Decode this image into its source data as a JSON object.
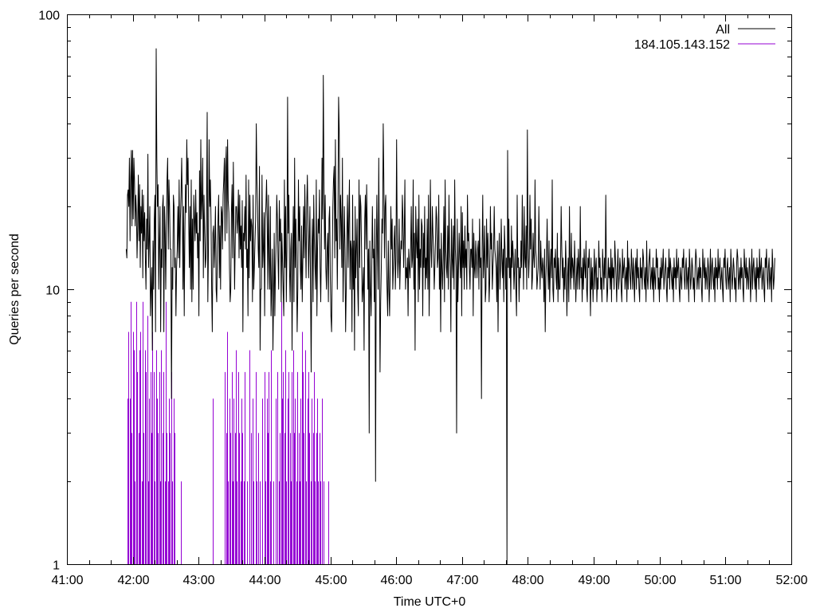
{
  "chart_data": {
    "type": "line",
    "title": "",
    "xlabel": "Time UTC+0",
    "ylabel": "Queries per second",
    "y_scale": "log",
    "xlim": [
      "41:00",
      "52:00"
    ],
    "ylim": [
      1,
      100
    ],
    "grid": false,
    "legend_position": "top-right",
    "x_ticks": [
      "41:00",
      "42:00",
      "43:00",
      "44:00",
      "45:00",
      "46:00",
      "47:00",
      "48:00",
      "49:00",
      "50:00",
      "51:00",
      "52:00"
    ],
    "y_ticks": [
      "1",
      "10",
      "100"
    ],
    "series": [
      {
        "name": "All",
        "style": "line",
        "color": "#000000",
        "x_start": "41:54",
        "x_step_seconds": 1,
        "values": [
          14,
          13,
          22,
          23,
          20,
          30,
          15,
          25,
          32,
          17,
          32,
          18,
          30,
          25,
          17,
          22,
          19,
          13,
          17,
          26,
          15,
          24,
          12,
          20,
          16,
          23,
          11,
          22,
          15,
          19,
          13,
          10,
          18,
          14,
          31,
          12,
          15,
          20,
          8,
          10,
          12,
          6,
          15,
          10,
          18,
          22,
          7,
          75,
          30,
          20,
          24,
          10,
          15,
          20,
          7,
          14,
          12,
          20,
          22,
          7,
          20,
          16,
          10,
          17,
          25,
          30,
          14,
          25,
          20,
          14,
          14,
          4,
          12,
          10,
          22,
          20,
          12,
          13,
          8,
          12,
          14,
          20,
          13,
          25,
          12,
          18,
          22,
          30,
          20,
          10,
          20,
          8,
          16,
          24,
          19,
          35,
          24,
          30,
          18,
          12,
          20,
          10,
          25,
          9,
          18,
          10,
          22,
          18,
          15,
          23,
          16,
          19,
          13,
          16,
          8,
          27,
          15,
          35,
          18,
          21,
          30,
          11,
          22,
          16,
          12,
          13,
          20,
          44,
          9,
          14,
          35,
          20,
          25,
          18,
          10,
          7,
          16,
          17,
          12,
          15,
          20,
          10,
          9,
          14,
          18,
          22,
          11,
          17,
          10,
          20,
          19,
          14,
          22,
          25,
          30,
          15,
          28,
          33,
          16,
          35,
          21,
          19,
          12,
          9,
          10,
          19,
          24,
          13,
          29,
          17,
          10,
          15,
          20,
          20,
          16,
          18,
          23,
          13,
          22,
          14,
          17,
          12,
          21,
          7,
          16,
          15,
          20,
          14,
          26,
          12,
          14,
          8,
          25,
          11,
          22,
          15,
          18,
          17,
          9,
          22,
          10,
          12,
          15,
          18,
          40,
          25,
          20,
          14,
          12,
          28,
          6,
          10,
          10,
          26,
          12,
          14,
          19,
          8,
          18,
          20,
          25,
          18,
          10,
          22,
          13,
          10,
          20,
          8,
          10,
          14,
          6,
          9,
          16,
          8,
          12,
          15,
          22,
          18,
          13,
          10,
          21,
          15,
          18,
          9,
          16,
          13,
          10,
          8,
          25,
          12,
          20,
          9,
          14,
          50,
          16,
          22,
          12,
          9,
          14,
          16,
          6,
          13,
          20,
          9,
          30,
          12,
          18,
          12,
          7,
          10,
          25,
          15,
          20,
          12,
          10,
          17,
          9,
          13,
          20,
          13,
          24,
          16,
          11,
          20,
          26,
          18,
          11,
          15,
          20,
          10,
          5,
          14,
          18,
          9,
          22,
          15,
          12,
          10,
          25,
          8,
          14,
          18,
          16,
          23,
          12,
          9,
          14,
          30,
          18,
          60,
          25,
          14,
          22,
          12,
          10,
          14,
          16,
          9,
          18,
          20,
          11,
          8,
          7,
          12,
          20,
          25,
          28,
          13,
          35,
          15,
          18,
          10,
          19,
          50,
          38,
          14,
          22,
          18,
          12,
          30,
          9,
          13,
          20,
          14,
          7,
          10,
          16,
          22,
          12,
          18,
          25,
          10,
          15,
          14,
          7,
          22,
          10,
          15,
          6,
          20,
          11,
          14,
          18,
          10,
          8,
          25,
          12,
          22,
          20,
          14,
          9,
          10,
          12,
          6,
          18,
          22,
          14,
          24,
          16,
          10,
          14,
          3,
          15,
          10,
          8,
          12,
          20,
          13,
          14,
          9,
          18,
          2,
          12,
          22,
          14,
          10,
          30,
          13,
          5,
          9,
          12,
          18,
          16,
          40,
          25,
          13,
          20,
          22,
          13,
          10,
          8,
          15,
          10,
          8,
          12,
          20,
          14,
          18,
          10,
          12,
          15,
          17,
          10,
          13,
          35,
          15,
          11,
          13,
          18,
          10,
          13,
          15,
          14,
          22,
          18,
          12,
          16,
          25,
          10,
          12,
          11,
          13,
          8,
          14,
          12,
          11,
          14,
          20,
          12,
          13,
          25,
          10,
          16,
          6,
          20,
          15,
          13,
          18,
          9,
          22,
          10,
          14,
          12,
          18,
          17,
          8,
          16,
          12,
          20,
          10,
          13,
          11,
          18,
          10,
          22,
          8,
          12,
          25,
          14,
          12,
          20,
          16,
          14,
          10,
          12,
          15,
          20,
          18,
          12,
          13,
          22,
          10,
          14,
          7,
          16,
          12,
          10,
          13,
          20,
          9,
          25,
          14,
          12,
          11,
          17,
          10,
          22,
          14,
          12,
          7,
          18,
          13,
          11,
          17,
          10,
          25,
          14,
          12,
          3,
          18,
          9,
          12,
          16,
          13,
          11,
          20,
          8,
          19,
          12,
          15,
          10,
          17,
          12,
          14,
          10,
          22,
          15,
          16,
          12,
          10,
          14,
          14,
          12,
          18,
          8,
          16,
          12,
          11,
          15,
          13,
          11,
          14,
          15,
          10,
          18,
          12,
          13,
          4,
          14,
          22,
          11,
          13,
          17,
          9,
          10,
          18,
          12,
          16,
          13,
          9,
          11,
          20,
          14,
          16,
          10,
          12,
          14,
          20,
          14,
          13,
          12,
          9,
          15,
          7,
          13,
          16,
          10,
          12,
          18,
          13,
          11,
          14,
          9,
          17,
          14,
          10,
          13,
          1,
          32,
          12,
          18,
          11,
          13,
          9,
          17,
          12,
          15,
          13,
          10,
          12,
          14,
          10,
          8,
          22,
          12,
          13,
          9,
          12,
          11,
          15,
          12,
          22,
          14,
          10,
          20,
          13,
          12,
          17,
          10,
          38,
          15,
          11,
          13,
          22,
          14,
          18,
          10,
          11,
          16,
          13,
          12,
          25,
          14,
          13,
          10,
          11,
          12,
          20,
          14,
          10,
          15,
          12,
          11,
          13,
          12,
          9,
          14,
          7,
          11,
          13,
          18,
          12,
          10,
          15,
          9,
          12,
          14,
          11,
          25,
          10,
          9,
          13,
          12,
          14,
          11,
          10,
          16,
          9,
          13,
          10,
          10,
          12,
          20,
          14,
          11,
          13,
          9,
          12,
          10,
          15,
          12,
          8,
          11,
          13,
          9,
          20,
          12,
          10,
          16,
          11,
          13,
          12,
          10,
          15,
          12,
          9,
          11,
          13,
          10,
          14,
          12,
          10,
          20,
          11,
          12,
          9,
          13,
          10,
          14,
          12,
          11,
          15,
          10,
          9,
          13,
          12,
          14,
          11,
          8,
          13,
          10,
          12,
          9,
          11,
          14,
          10,
          12,
          13,
          9,
          11,
          10,
          15,
          12,
          13,
          10,
          11,
          9,
          14,
          12,
          10,
          13,
          11,
          22,
          12,
          9,
          10,
          13,
          11,
          12,
          10,
          14,
          9,
          13,
          11,
          12,
          10,
          15,
          13,
          11,
          9,
          12,
          14,
          10,
          11,
          13,
          12,
          10,
          9,
          14,
          11,
          12,
          13,
          10,
          11,
          12,
          9,
          15,
          10,
          13,
          12,
          11,
          10,
          14,
          12,
          10,
          13,
          11,
          9,
          12,
          13,
          10,
          14,
          11,
          12,
          10,
          9,
          13,
          11,
          12,
          10,
          14,
          13,
          11,
          10,
          12,
          9,
          15,
          11,
          10,
          12,
          13,
          14,
          10,
          11,
          12,
          10,
          13,
          9,
          12,
          11,
          10,
          14,
          12,
          13,
          10,
          11,
          9,
          12,
          10,
          13,
          11,
          12,
          14,
          10,
          11,
          12,
          13,
          10,
          9,
          12,
          11,
          14,
          10,
          13,
          12,
          11,
          10,
          12,
          9,
          13,
          11,
          12,
          10,
          14,
          11,
          12,
          13,
          10,
          9,
          12,
          11,
          10,
          13,
          12,
          14,
          11,
          10,
          12,
          13,
          10,
          11,
          12,
          9,
          14,
          12,
          10,
          11,
          13,
          12,
          10,
          11,
          9,
          12,
          14,
          13,
          10,
          11,
          12,
          10,
          13,
          11,
          12,
          10,
          9,
          14,
          12,
          11,
          13,
          10,
          12,
          11,
          10,
          13,
          12,
          9,
          11,
          14,
          10,
          12,
          13,
          11,
          10,
          12,
          9,
          13,
          11,
          12,
          10,
          14,
          11,
          12,
          13,
          10,
          11,
          12,
          10,
          9,
          13,
          12,
          14,
          11,
          10,
          12,
          13,
          10,
          11,
          12,
          9,
          14,
          12,
          10,
          11,
          13,
          12,
          10,
          11,
          9,
          12,
          14,
          13,
          10,
          11,
          12,
          10,
          13,
          11,
          12,
          10,
          9,
          14,
          12,
          11,
          13,
          10,
          12,
          11,
          10,
          13,
          12,
          9,
          11,
          14,
          10,
          12,
          13,
          11,
          10,
          12,
          9,
          13,
          11,
          12,
          10,
          14,
          11,
          12,
          13,
          10,
          11,
          12,
          10,
          9,
          13,
          12,
          14,
          11,
          10,
          12,
          13,
          10,
          11,
          12,
          9,
          14,
          12,
          10,
          11,
          13
        ]
      },
      {
        "name": "184.105.143.152",
        "style": "impulse",
        "color": "#9400d3",
        "x": [
          "41:55",
          "41:56",
          "41:57",
          "41:58",
          "41:59",
          "42:00",
          "42:01",
          "42:02",
          "42:03",
          "42:04",
          "42:05",
          "42:06",
          "42:07",
          "42:08",
          "42:09",
          "42:10",
          "42:11",
          "42:12",
          "42:13",
          "42:14",
          "42:15",
          "42:16",
          "42:17",
          "42:18",
          "42:19",
          "42:20",
          "42:21",
          "42:22",
          "42:23",
          "42:24",
          "42:25",
          "42:26",
          "42:27",
          "42:28",
          "42:29",
          "42:30",
          "42:31",
          "42:32",
          "42:33",
          "42:34",
          "42:35",
          "42:36",
          "42:37",
          "42:38",
          "42:44",
          "43:13",
          "43:24",
          "43:25",
          "43:26",
          "43:27",
          "43:28",
          "43:29",
          "43:30",
          "43:31",
          "43:32",
          "43:33",
          "43:34",
          "43:35",
          "43:36",
          "43:37",
          "43:38",
          "43:39",
          "43:40",
          "43:41",
          "43:42",
          "43:44",
          "43:46",
          "43:48",
          "43:49",
          "43:50",
          "43:52",
          "43:53",
          "43:54",
          "43:56",
          "43:58",
          "44:00",
          "44:01",
          "44:02",
          "44:03",
          "44:04",
          "44:05",
          "44:06",
          "44:08",
          "44:10",
          "44:12",
          "44:13",
          "44:14",
          "44:15",
          "44:16",
          "44:17",
          "44:18",
          "44:19",
          "44:20",
          "44:21",
          "44:22",
          "44:23",
          "44:24",
          "44:25",
          "44:26",
          "44:27",
          "44:28",
          "44:29",
          "44:30",
          "44:31",
          "44:32",
          "44:33",
          "44:34",
          "44:35",
          "44:36",
          "44:37",
          "44:38",
          "44:39",
          "44:40",
          "44:41",
          "44:42",
          "44:43",
          "44:44",
          "44:45",
          "44:46",
          "44:47",
          "44:48",
          "44:49",
          "44:50",
          "44:51",
          "44:52",
          "44:54",
          "44:58"
        ],
        "values": [
          4,
          7,
          4,
          9,
          3,
          7,
          6,
          2,
          9,
          5,
          3,
          6,
          7,
          2,
          9,
          3,
          6,
          5,
          8,
          2,
          4,
          5,
          3,
          7,
          5,
          2,
          6,
          4,
          3,
          5,
          2,
          6,
          3,
          5,
          2,
          9,
          3,
          2,
          4,
          3,
          5,
          2,
          4,
          3,
          2,
          4,
          5,
          3,
          7,
          2,
          4,
          3,
          5,
          2,
          4,
          3,
          6,
          2,
          5,
          3,
          2,
          4,
          3,
          2,
          5,
          2,
          6,
          3,
          4,
          2,
          5,
          2,
          3,
          2,
          4,
          5,
          2,
          4,
          3,
          5,
          2,
          6,
          2,
          4,
          5,
          2,
          3,
          9,
          4,
          5,
          3,
          6,
          2,
          4,
          5,
          3,
          2,
          5,
          6,
          3,
          4,
          2,
          5,
          3,
          2,
          4,
          7,
          5,
          3,
          6,
          2,
          4,
          5,
          3,
          2,
          4,
          3,
          5,
          2,
          3,
          4,
          2,
          3,
          2,
          4,
          2,
          2
        ]
      }
    ]
  }
}
